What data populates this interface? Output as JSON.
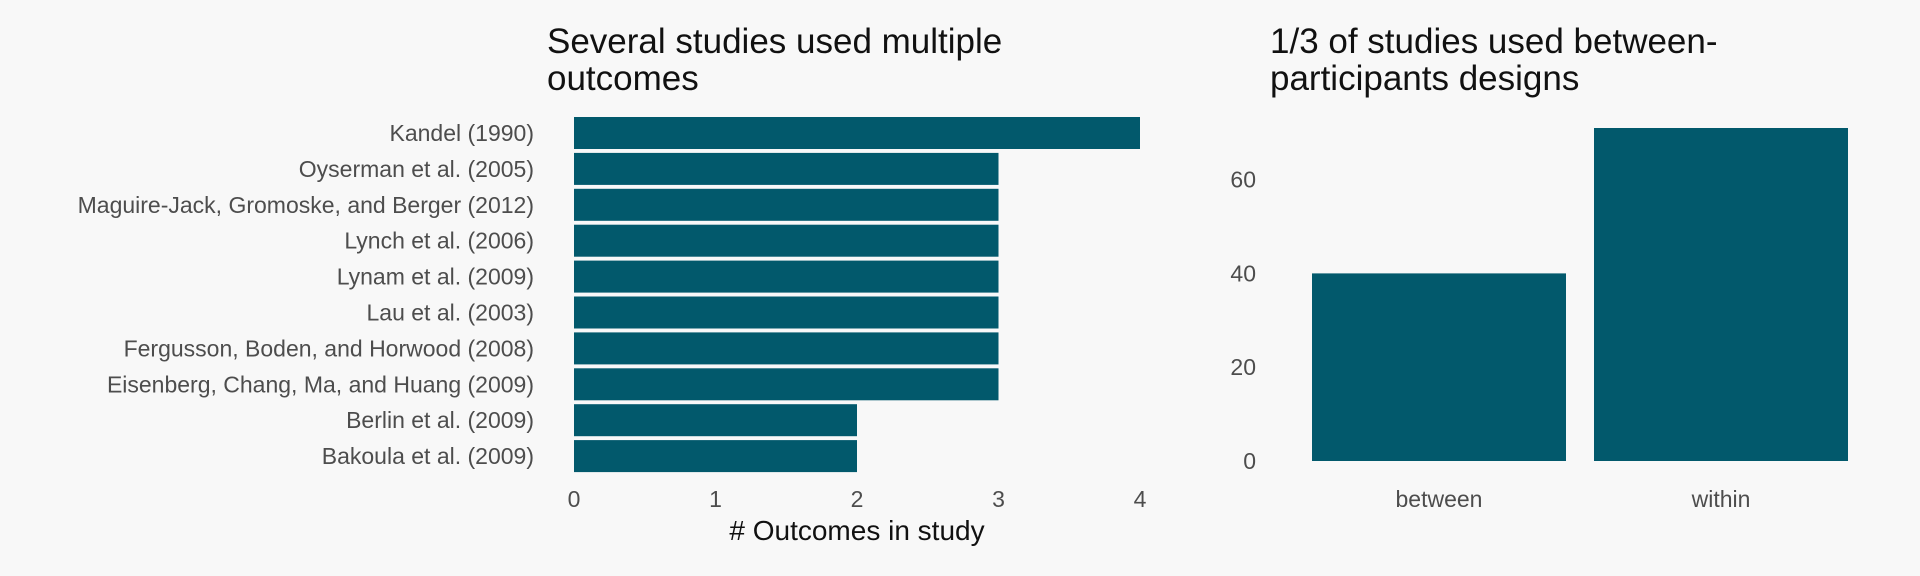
{
  "colors": {
    "bar": "#02596c",
    "background": "#f8f8f8"
  },
  "chart_data": [
    {
      "type": "bar",
      "orientation": "horizontal",
      "title_lines": [
        "Several studies used multiple",
        "outcomes"
      ],
      "xlabel": "# Outcomes in study",
      "ylabel": "",
      "categories": [
        "Kandel (1990)",
        "Oyserman et al. (2005)",
        "Maguire-Jack, Gromoske, and Berger (2012)",
        "Lynch et al. (2006)",
        "Lynam et al. (2009)",
        "Lau et al. (2003)",
        "Fergusson, Boden, and Horwood (2008)",
        "Eisenberg, Chang, Ma, and Huang (2009)",
        "Berlin et al. (2009)",
        "Bakoula et al. (2009)"
      ],
      "values": [
        4,
        3,
        3,
        3,
        3,
        3,
        3,
        3,
        2,
        2
      ],
      "xlim": [
        0,
        4
      ],
      "xticks": [
        0,
        1,
        2,
        3,
        4
      ],
      "grid": false
    },
    {
      "type": "bar",
      "orientation": "vertical",
      "title_lines": [
        "1/3 of studies used between-",
        "participants designs"
      ],
      "xlabel": "",
      "ylabel": "",
      "categories": [
        "between",
        "within"
      ],
      "values": [
        40,
        71
      ],
      "ylim": [
        0,
        71
      ],
      "yticks": [
        0,
        20,
        40,
        60
      ],
      "grid": false
    }
  ]
}
